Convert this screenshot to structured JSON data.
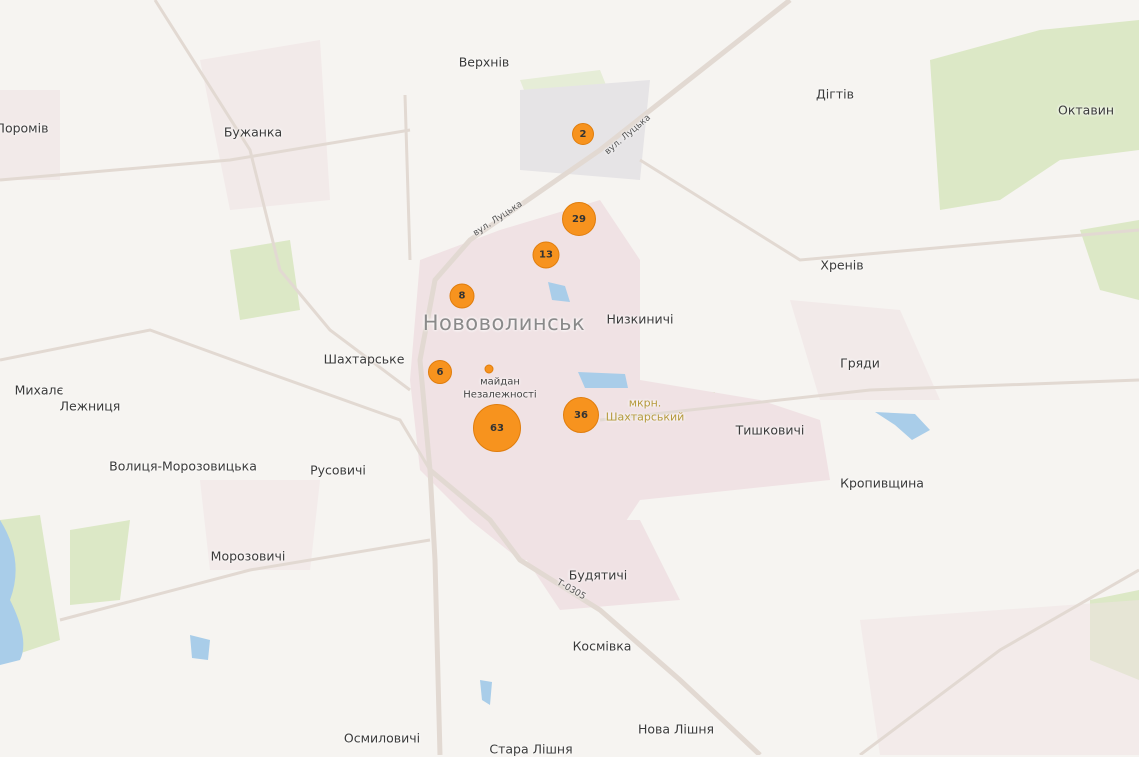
{
  "map": {
    "colors": {
      "background": "#f6f4f1",
      "urban": "#f0e2e4",
      "green": "#dce8c6",
      "water": "#a9cde9",
      "road": "#e4dcd6",
      "cluster": "#f7931e"
    },
    "city": "Нововолинськ",
    "places": [
      "Верхнів",
      "Поромів",
      "Бужанка",
      "Дігтів",
      "Октавин",
      "Хренів",
      "Низкиничі",
      "Шахтарське",
      "Гряди",
      "Михалє",
      "Лежниця",
      "Тишковичі",
      "Волиця-Морозовицька",
      "Русовичі",
      "Кропивщина",
      "Морозовичі",
      "Будятичі",
      "Космівка",
      "Нова Лішня",
      "Осмиловичі",
      "Стара Лішня"
    ],
    "streets": [
      "вул. Луцька",
      "вул. Луцька",
      "Т-0305"
    ],
    "square": [
      "майдан",
      "Незалежності"
    ],
    "district": [
      "мкрн.",
      "Шахтарський"
    ],
    "clusters": [
      {
        "count": "2"
      },
      {
        "count": "29"
      },
      {
        "count": "13"
      },
      {
        "count": "8"
      },
      {
        "count": "6"
      },
      {
        "count": ""
      },
      {
        "count": "63"
      },
      {
        "count": "36"
      }
    ]
  }
}
